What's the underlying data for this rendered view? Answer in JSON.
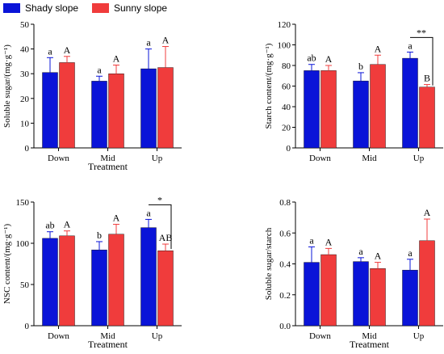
{
  "legend": [
    {
      "label": "Shady slope",
      "color": "#0a14d8"
    },
    {
      "label": "Sunny slope",
      "color": "#f03c3c"
    }
  ],
  "chart_data": [
    {
      "type": "bar",
      "categories": [
        "Down",
        "Mid",
        "Up"
      ],
      "xlabel": "Treatment",
      "ylabel": "Soluble sugar/(mg·g⁻¹)",
      "ylim": [
        0,
        50
      ],
      "yticks": [
        0,
        10,
        20,
        30,
        40,
        50
      ],
      "series": [
        {
          "name": "Shady slope",
          "values": [
            30.5,
            27,
            32
          ],
          "errors": [
            6,
            2,
            8
          ],
          "letters": [
            "a",
            "a",
            "a"
          ]
        },
        {
          "name": "Sunny slope",
          "values": [
            34.5,
            30,
            32.5
          ],
          "errors": [
            2.5,
            3.5,
            8.5
          ],
          "letters": [
            "A",
            "A",
            "A"
          ]
        }
      ],
      "annotations": []
    },
    {
      "type": "bar",
      "categories": [
        "Down",
        "Mid",
        "Up"
      ],
      "xlabel": "",
      "ylabel": "Starch content/(mg·g⁻¹)",
      "ylim": [
        0,
        120
      ],
      "yticks": [
        0,
        20,
        40,
        60,
        80,
        100,
        120
      ],
      "series": [
        {
          "name": "Shady slope",
          "values": [
            75,
            65,
            87
          ],
          "errors": [
            6,
            8,
            6
          ],
          "letters": [
            "ab",
            "b",
            "a"
          ]
        },
        {
          "name": "Sunny slope",
          "values": [
            75,
            81,
            59
          ],
          "errors": [
            5,
            9,
            2.5
          ],
          "letters": [
            "A",
            "A",
            "B"
          ]
        }
      ],
      "annotations": [
        {
          "text": "**",
          "category": "Up",
          "color": "#000000"
        }
      ]
    },
    {
      "type": "bar",
      "categories": [
        "Down",
        "Mid",
        "Up"
      ],
      "xlabel": "Treatment",
      "ylabel": "NSC content/(mg·g⁻¹)",
      "ylim": [
        0,
        150
      ],
      "yticks": [
        0,
        50,
        100,
        150
      ],
      "series": [
        {
          "name": "Shady slope",
          "values": [
            106,
            92,
            119
          ],
          "errors": [
            8,
            10,
            10
          ],
          "letters": [
            "ab",
            "b",
            "a"
          ]
        },
        {
          "name": "Sunny slope",
          "values": [
            109,
            111,
            91
          ],
          "errors": [
            6,
            12,
            8
          ],
          "letters": [
            "A",
            "A",
            "AB"
          ]
        }
      ],
      "annotations": [
        {
          "text": "*",
          "category": "Up",
          "color": "#e02020"
        }
      ]
    },
    {
      "type": "bar",
      "categories": [
        "Down",
        "Mid",
        "Up"
      ],
      "xlabel": "Treatment",
      "ylabel": "Soluble sugar/starch",
      "ylim": [
        0,
        0.8
      ],
      "yticks": [
        0.0,
        0.2,
        0.4,
        0.6,
        0.8
      ],
      "series": [
        {
          "name": "Shady slope",
          "values": [
            0.41,
            0.415,
            0.36
          ],
          "errors": [
            0.1,
            0.025,
            0.07
          ],
          "letters": [
            "a",
            "a",
            "a"
          ]
        },
        {
          "name": "Sunny slope",
          "values": [
            0.46,
            0.37,
            0.55
          ],
          "errors": [
            0.04,
            0.04,
            0.14
          ],
          "letters": [
            "A",
            "A",
            "A"
          ]
        }
      ],
      "annotations": []
    }
  ]
}
